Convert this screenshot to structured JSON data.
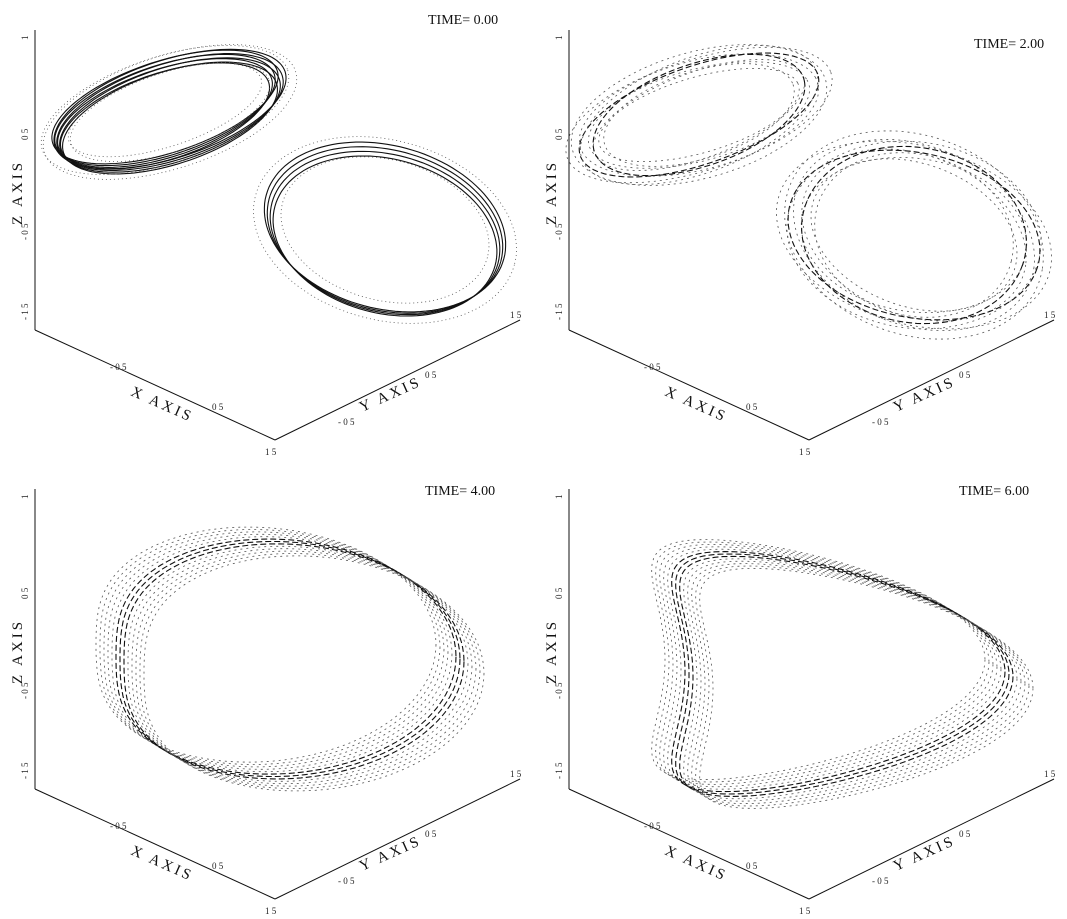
{
  "panels": [
    {
      "time_label": "TIME=  0.00",
      "state": 0
    },
    {
      "time_label": "TIME=  2.00",
      "state": 1
    },
    {
      "time_label": "TIME=  4.00",
      "state": 2
    },
    {
      "time_label": "TIME=  6.00",
      "state": 3
    }
  ],
  "axes": {
    "x_title": "X AXIS",
    "y_title": "Y AXIS",
    "z_title": "Z AXIS",
    "x_ticks": [
      "- 0  5",
      "0  5",
      "1  5"
    ],
    "y_ticks": [
      "- 0  5",
      "0  5",
      "1  5"
    ],
    "z_ticks": [
      "1",
      "0  5",
      "- 0  5",
      "- 1  5"
    ]
  },
  "colors": {
    "ink": "#111111",
    "stipple": "#555555"
  }
}
